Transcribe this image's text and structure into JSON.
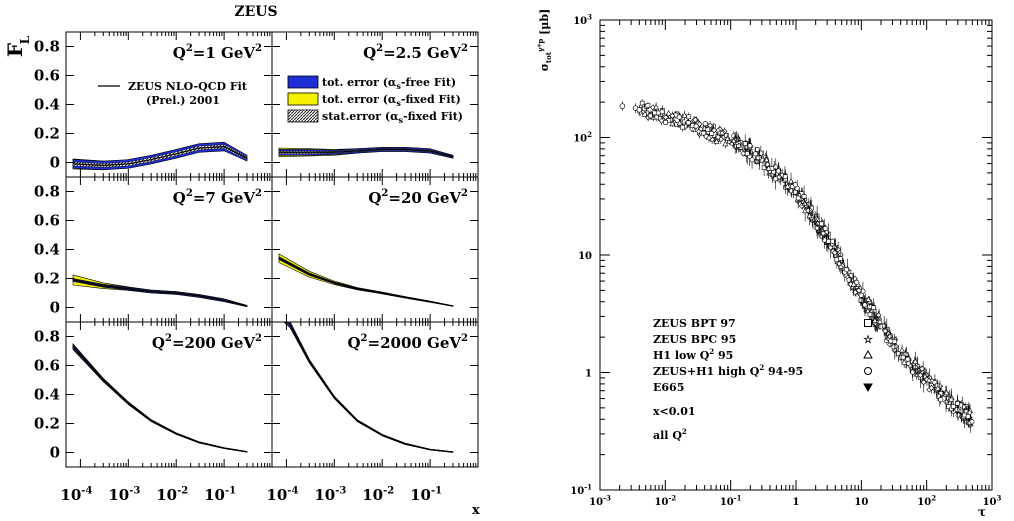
{
  "left_figure": {
    "title": "ZEUS",
    "ylabel": "F",
    "ylabel_sub": "L",
    "xlabel": "x",
    "legend": {
      "fit_line": "ZEUS NLO-QCD Fit",
      "fit_line2": "(Prel.) 2001",
      "entries": [
        {
          "label": "tot. error (α",
          "sub": "s",
          "rest": "-free  Fit)",
          "color": "#1f2fd6"
        },
        {
          "label": "tot. error (α",
          "sub": "s",
          "rest": "-fixed Fit)",
          "color": "#f5f000"
        },
        {
          "label": "stat.error (α",
          "sub": "s",
          "rest": "-fixed Fit)",
          "color": "#444444"
        }
      ]
    },
    "y_ticks": [
      "0",
      "0.2",
      "0.4",
      "0.6",
      "0.8"
    ],
    "x_ticks": [
      {
        "base": "10",
        "exp": "-4"
      },
      {
        "base": "10",
        "exp": "-3"
      },
      {
        "base": "10",
        "exp": "-2"
      },
      {
        "base": "10",
        "exp": "-1"
      }
    ]
  },
  "chart_data": [
    {
      "type": "line",
      "title": "ZEUS",
      "xlabel": "x",
      "ylabel": "F_L",
      "xscale": "log",
      "xlim": [
        5e-05,
        1
      ],
      "ylim": [
        -0.1,
        0.9
      ],
      "panels": [
        {
          "label": "Q",
          "exp": "2",
          "value": "=1 GeV",
          "unit_exp": "2",
          "x": [
            7e-05,
            0.0003,
            0.001,
            0.003,
            0.01,
            0.03,
            0.1,
            0.3
          ],
          "y": [
            -0.01,
            -0.02,
            -0.01,
            0.02,
            0.06,
            0.1,
            0.11,
            0.03
          ],
          "band_blue": [
            0.03,
            0.03,
            0.03,
            0.03,
            0.03,
            0.03,
            0.03,
            0.02
          ],
          "band_yellow": [
            0.035,
            0.03,
            0.02,
            0.015,
            0.01,
            0.01,
            0.01,
            0.01
          ]
        },
        {
          "label": "Q",
          "exp": "2",
          "value": "=2.5 GeV",
          "unit_exp": "2",
          "x": [
            7e-05,
            0.0003,
            0.001,
            0.003,
            0.01,
            0.03,
            0.1,
            0.3
          ],
          "y": [
            0.07,
            0.07,
            0.07,
            0.08,
            0.09,
            0.09,
            0.08,
            0.04
          ],
          "band_blue": [
            0.02,
            0.02,
            0.015,
            0.015,
            0.015,
            0.015,
            0.015,
            0.01
          ],
          "band_yellow": [
            0.03,
            0.025,
            0.02,
            0.015,
            0.01,
            0.01,
            0.01,
            0.01
          ]
        },
        {
          "label": "Q",
          "exp": "2",
          "value": "=7 GeV",
          "unit_exp": "2",
          "x": [
            7e-05,
            0.0003,
            0.001,
            0.003,
            0.01,
            0.03,
            0.1,
            0.3
          ],
          "y": [
            0.19,
            0.15,
            0.13,
            0.11,
            0.1,
            0.08,
            0.05,
            0.01
          ],
          "band_blue": [
            0.01,
            0.01,
            0.01,
            0.01,
            0.01,
            0.01,
            0.01,
            0.005
          ],
          "band_yellow": [
            0.035,
            0.02,
            0.012,
            0.01,
            0.008,
            0.006,
            0.005,
            0.003
          ]
        },
        {
          "label": "Q",
          "exp": "2",
          "value": "=20 GeV",
          "unit_exp": "2",
          "x": [
            7e-05,
            0.0003,
            0.001,
            0.003,
            0.01,
            0.03,
            0.1,
            0.3
          ],
          "y": [
            0.34,
            0.23,
            0.17,
            0.13,
            0.1,
            0.07,
            0.04,
            0.01
          ],
          "band_blue": [
            0.01,
            0.008,
            0.006,
            0.005,
            0.004,
            0.004,
            0.003,
            0.002
          ],
          "band_yellow": [
            0.03,
            0.02,
            0.012,
            0.008,
            0.006,
            0.005,
            0.004,
            0.002
          ]
        },
        {
          "label": "Q",
          "exp": "2",
          "value": "=200 GeV",
          "unit_exp": "2",
          "x": [
            7e-05,
            0.0003,
            0.001,
            0.003,
            0.01,
            0.03,
            0.1,
            0.3
          ],
          "y": [
            0.73,
            0.5,
            0.34,
            0.22,
            0.13,
            0.07,
            0.03,
            0.005
          ],
          "band_blue": [
            0.015,
            0.01,
            0.008,
            0.006,
            0.005,
            0.004,
            0.003,
            0.002
          ],
          "band_yellow": [
            0.02,
            0.012,
            0.009,
            0.007,
            0.005,
            0.004,
            0.003,
            0.002
          ]
        },
        {
          "label": "Q",
          "exp": "2",
          "value": "=2000 GeV",
          "unit_exp": "2",
          "x": [
            7e-05,
            0.00012,
            0.0003,
            0.001,
            0.003,
            0.01,
            0.03,
            0.1,
            0.3
          ],
          "y": [
            0.95,
            0.88,
            0.63,
            0.38,
            0.22,
            0.12,
            0.06,
            0.02,
            0.003
          ],
          "band_blue": [
            0.02,
            0.02,
            0.012,
            0.008,
            0.006,
            0.005,
            0.004,
            0.003,
            0.002
          ],
          "band_yellow": [
            0.02,
            0.02,
            0.012,
            0.008,
            0.006,
            0.005,
            0.004,
            0.003,
            0.002
          ]
        }
      ]
    },
    {
      "type": "scatter",
      "xlabel": "τ",
      "ylabel": "σ_tot^γ*p [μb]",
      "xscale": "log",
      "yscale": "log",
      "xlim": [
        0.001,
        1000
      ],
      "ylim": [
        0.1,
        1000
      ],
      "x_ticks": [
        {
          "base": "10",
          "exp": "-3"
        },
        {
          "base": "10",
          "exp": "-2"
        },
        {
          "base": "10",
          "exp": "-1"
        },
        {
          "base": "1",
          "exp": ""
        },
        {
          "base": "10",
          "exp": ""
        },
        {
          "base": "10",
          "exp": "2"
        },
        {
          "base": "10",
          "exp": "3"
        }
      ],
      "y_ticks": [
        {
          "base": "10",
          "exp": "-1"
        },
        {
          "base": "1",
          "exp": ""
        },
        {
          "base": "10",
          "exp": ""
        },
        {
          "base": "10",
          "exp": "2"
        },
        {
          "base": "10",
          "exp": "3"
        }
      ],
      "legend": [
        {
          "label": "ZEUS BPT 97",
          "marker": "square"
        },
        {
          "label": "ZEUS BPC 95",
          "marker": "star"
        },
        {
          "label": "H1 low Q",
          "exp": "2",
          "rest": " 95",
          "marker": "triangle"
        },
        {
          "label": "ZEUS+H1 high Q",
          "exp": "2",
          "rest": " 94-95",
          "marker": "circle"
        },
        {
          "label": "E665",
          "marker": "filled-triangle"
        }
      ],
      "annotations": [
        "x<0.01",
        "all Q"
      ],
      "trend_x": [
        0.002,
        0.005,
        0.01,
        0.03,
        0.1,
        0.3,
        1,
        3,
        10,
        30,
        100,
        300,
        600
      ],
      "trend_y": [
        185,
        170,
        155,
        125,
        95,
        65,
        35,
        14,
        4.5,
        1.8,
        0.85,
        0.5,
        0.38
      ]
    }
  ]
}
